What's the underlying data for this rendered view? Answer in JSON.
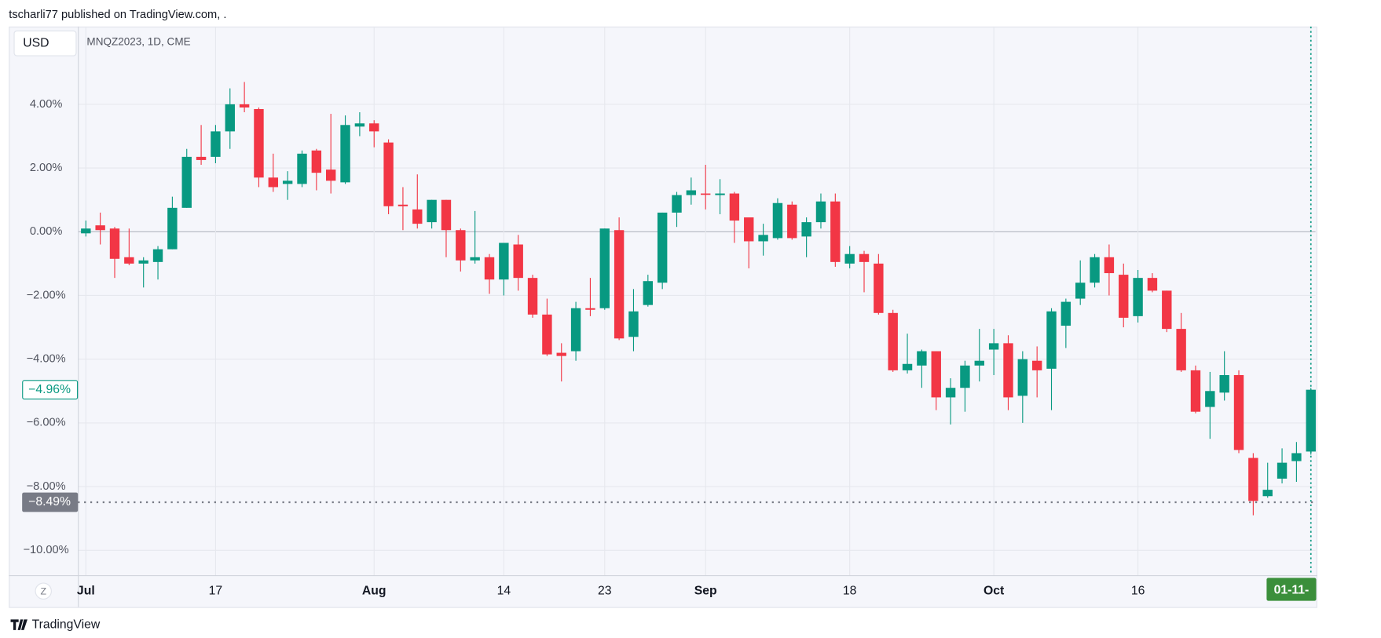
{
  "header": {
    "author_line": "tscharli77 published on TradingView.com, ."
  },
  "toolbar": {
    "currency": "USD",
    "timezone": "Z"
  },
  "footer": {
    "brand": "TradingView"
  },
  "chart_data": {
    "type": "candlestick",
    "title": "MNQZ2023, 1D, CME",
    "categories": [
      "Jul",
      null,
      null,
      null,
      null,
      null,
      null,
      null,
      null,
      "17",
      null,
      null,
      null,
      null,
      null,
      null,
      null,
      null,
      null,
      null,
      "Aug",
      null,
      null,
      null,
      null,
      null,
      null,
      null,
      null,
      "14",
      null,
      null,
      null,
      null,
      null,
      null,
      "23",
      null,
      null,
      null,
      null,
      null,
      null,
      "Sep",
      null,
      null,
      null,
      null,
      null,
      null,
      null,
      null,
      null,
      "18",
      null,
      null,
      null,
      null,
      null,
      null,
      null,
      null,
      null,
      "Oct",
      null,
      null,
      null,
      null,
      null,
      null,
      null,
      null,
      null,
      "16",
      null,
      null,
      null,
      null,
      null,
      null,
      null,
      null,
      null,
      null,
      null,
      "01-11-"
    ],
    "open": [
      -0.05,
      0.2,
      0.1,
      -0.8,
      -1.0,
      -0.95,
      -0.55,
      0.75,
      2.35,
      2.35,
      3.15,
      4.0,
      3.85,
      1.7,
      1.5,
      1.5,
      2.55,
      1.95,
      1.55,
      3.3,
      3.4,
      2.8,
      0.85,
      0.7,
      0.3,
      1.0,
      0.05,
      -0.9,
      -0.8,
      -1.5,
      -0.4,
      -1.45,
      -2.6,
      -3.8,
      -3.75,
      -2.4,
      -2.4,
      0.05,
      -3.3,
      -2.3,
      -1.6,
      0.6,
      1.15,
      1.2,
      1.15,
      1.2,
      0.45,
      -0.3,
      -0.2,
      0.85,
      -0.15,
      0.3,
      0.95,
      -1.0,
      -0.7,
      -1.0,
      -2.55,
      -4.35,
      -4.2,
      -3.75,
      -5.2,
      -4.9,
      -4.2,
      -3.7,
      -3.5,
      -5.15,
      -4.05,
      -4.3,
      -2.95,
      -2.1,
      -1.6,
      -0.8,
      -1.35,
      -2.65,
      -1.45,
      -1.85,
      -3.05,
      -4.35,
      -5.5,
      -5.05,
      -4.5,
      -7.1,
      -8.3,
      -7.75,
      -7.2,
      -6.9
    ],
    "high": [
      0.35,
      0.6,
      0.15,
      0.1,
      -0.8,
      -0.45,
      1.1,
      2.6,
      3.35,
      3.35,
      4.5,
      4.7,
      3.9,
      2.45,
      1.9,
      2.55,
      2.6,
      3.7,
      3.65,
      3.75,
      3.5,
      2.9,
      1.4,
      1.8,
      1.0,
      1.0,
      0.1,
      0.65,
      -0.7,
      -0.35,
      -0.1,
      -1.35,
      -2.1,
      -3.5,
      -2.2,
      -1.45,
      0.1,
      0.45,
      -1.8,
      -1.35,
      0.6,
      1.25,
      1.7,
      2.1,
      1.65,
      1.25,
      0.45,
      0.25,
      1.05,
      0.95,
      0.45,
      1.2,
      1.2,
      -0.45,
      -0.6,
      -0.7,
      -2.45,
      -3.2,
      -3.7,
      -3.75,
      -4.6,
      -4.05,
      -3.05,
      -3.05,
      -3.25,
      -3.75,
      -3.6,
      -2.4,
      -2.1,
      -0.9,
      -0.7,
      -0.4,
      -1.0,
      -1.2,
      -1.3,
      -1.85,
      -2.55,
      -4.2,
      -4.4,
      -3.75,
      -4.35,
      -6.95,
      -7.25,
      -6.8,
      -6.6,
      -4.9
    ],
    "low": [
      -0.15,
      -0.4,
      -1.45,
      -1.05,
      -1.75,
      -1.5,
      -0.55,
      0.75,
      2.1,
      2.15,
      2.6,
      3.75,
      1.4,
      1.25,
      1.0,
      1.4,
      1.3,
      1.2,
      1.5,
      3.0,
      2.65,
      0.55,
      0.05,
      0.1,
      0.1,
      -0.8,
      -1.25,
      -1.0,
      -1.95,
      -2.0,
      -1.85,
      -2.7,
      -3.9,
      -4.7,
      -4.05,
      -2.65,
      -2.45,
      -3.4,
      -3.75,
      -2.35,
      -1.8,
      0.15,
      0.85,
      0.7,
      0.55,
      -0.35,
      -1.15,
      -0.75,
      -0.25,
      -0.25,
      -0.8,
      0.1,
      -1.1,
      -1.15,
      -1.9,
      -2.6,
      -4.4,
      -4.45,
      -4.9,
      -5.6,
      -6.05,
      -5.65,
      -4.7,
      -4.5,
      -5.6,
      -6.0,
      -5.2,
      -5.6,
      -3.65,
      -2.3,
      -1.75,
      -2.0,
      -3.0,
      -2.85,
      -1.9,
      -3.15,
      -4.4,
      -5.7,
      -6.5,
      -5.3,
      -6.95,
      -8.9,
      -8.35,
      -7.9,
      -7.85,
      -7.0
    ],
    "close": [
      0.1,
      0.05,
      -0.85,
      -1.0,
      -0.9,
      -0.55,
      0.75,
      2.35,
      2.25,
      3.15,
      4.0,
      3.9,
      1.7,
      1.4,
      1.6,
      2.45,
      1.85,
      1.6,
      3.35,
      3.4,
      3.15,
      0.8,
      0.8,
      0.25,
      1.0,
      0.05,
      -0.9,
      -0.8,
      -1.5,
      -0.35,
      -1.45,
      -2.6,
      -3.85,
      -3.9,
      -2.4,
      -2.45,
      0.1,
      -3.35,
      -2.5,
      -1.55,
      0.6,
      1.15,
      1.3,
      1.18,
      1.2,
      0.35,
      -0.3,
      -0.1,
      0.9,
      -0.2,
      0.3,
      0.95,
      -0.95,
      -0.7,
      -0.95,
      -2.55,
      -4.35,
      -4.15,
      -3.75,
      -5.2,
      -4.9,
      -4.2,
      -4.05,
      -3.5,
      -5.2,
      -4.0,
      -4.35,
      -2.5,
      -2.2,
      -1.6,
      -0.8,
      -1.3,
      -2.7,
      -1.45,
      -1.85,
      -3.05,
      -4.35,
      -5.65,
      -5.0,
      -4.5,
      -6.85,
      -8.45,
      -8.1,
      -7.25,
      -6.95,
      -4.96
    ],
    "up_color": "#089981",
    "down_color": "#f23645",
    "ylim": [
      -10.78,
      6.44
    ],
    "yticks": [
      {
        "value": 4,
        "label": "4.00%"
      },
      {
        "value": 2,
        "label": "2.00%"
      },
      {
        "value": 0,
        "label": "0.00%"
      },
      {
        "value": -2,
        "label": "−2.00%"
      },
      {
        "value": -4,
        "label": "−4.00%"
      },
      {
        "value": -6,
        "label": "−6.00%"
      },
      {
        "value": -8,
        "label": "−8.00%"
      },
      {
        "value": -10,
        "label": "−10.00%"
      }
    ],
    "grid": true,
    "price_lines": [
      {
        "value": -4.96,
        "label": "−4.96%",
        "color": "#089981",
        "style": "outline"
      },
      {
        "value": -8.49,
        "label": "−8.49%",
        "color": "#787b86",
        "style": "filled"
      }
    ]
  }
}
